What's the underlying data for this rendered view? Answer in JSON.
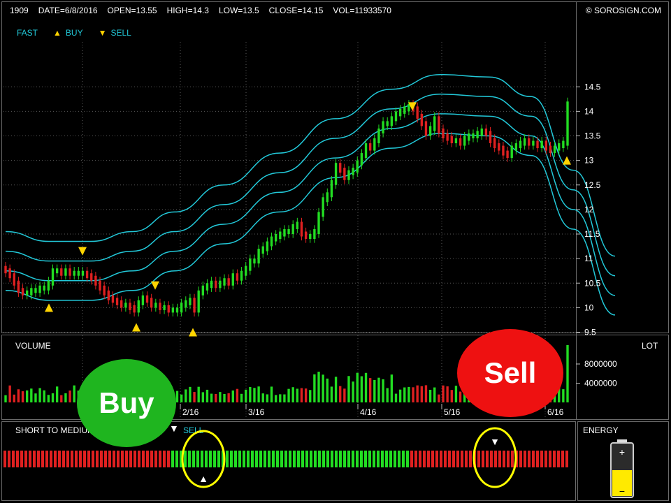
{
  "header": {
    "symbol": "1909",
    "date": "DATE=6/8/2016",
    "open": "OPEN=13.55",
    "high": "HIGH=14.3",
    "low": "LOW=13.5",
    "close": "CLOSE=14.15",
    "vol": "VOL=11933570",
    "copyright": "© SOROSIGN.COM"
  },
  "legend": {
    "fast": "FAST",
    "buy": "BUY",
    "sell": "SELL"
  },
  "colors": {
    "up": "#22dd22",
    "down": "#e02020",
    "band": "#22c8d8",
    "marker": "#ffd400",
    "buy_bubble": "#1fb51f",
    "sell_bubble": "#ee1111"
  },
  "chart_data": {
    "type": "candlestick",
    "ylim": [
      9,
      15
    ],
    "yticks": [
      "14.5",
      "14",
      "13.5",
      "13",
      "12.5",
      "12",
      "11.5",
      "11",
      "10.5",
      "10",
      "9.5"
    ],
    "xticks": [
      "2/16",
      "3/16",
      "4/16",
      "5/16",
      "6/16"
    ],
    "closes": [
      10.75,
      10.65,
      10.5,
      10.35,
      10.3,
      10.3,
      10.35,
      10.35,
      10.4,
      10.4,
      10.5,
      10.75,
      10.75,
      10.7,
      10.75,
      10.7,
      10.7,
      10.7,
      10.7,
      10.65,
      10.6,
      10.5,
      10.4,
      10.3,
      10.2,
      10.15,
      10.1,
      10.05,
      10.05,
      10,
      9.95,
      10.1,
      10.2,
      10.15,
      10.05,
      10.05,
      10,
      10,
      9.95,
      9.95,
      9.95,
      10.05,
      10.1,
      10.15,
      9.95,
      10.3,
      10.4,
      10.45,
      10.5,
      10.45,
      10.5,
      10.55,
      10.5,
      10.65,
      10.6,
      10.7,
      10.8,
      10.95,
      10.95,
      11.15,
      11.2,
      11.3,
      11.4,
      11.45,
      11.5,
      11.55,
      11.55,
      11.65,
      11.7,
      11.5,
      11.45,
      11.45,
      11.55,
      11.9,
      12.2,
      12.3,
      12.55,
      12.9,
      12.8,
      12.65,
      12.75,
      12.8,
      12.95,
      13.1,
      13.3,
      13.25,
      13.4,
      13.6,
      13.75,
      13.75,
      13.85,
      13.95,
      14,
      14.05,
      14.1,
      14.05,
      13.9,
      13.75,
      13.55,
      13.65,
      13.85,
      13.6,
      13.5,
      13.45,
      13.4,
      13.4,
      13.35,
      13.45,
      13.5,
      13.5,
      13.55,
      13.6,
      13.55,
      13.4,
      13.3,
      13.25,
      13.15,
      13.1,
      13.25,
      13.3,
      13.35,
      13.4,
      13.35,
      13.35,
      13.3,
      13.35,
      13.25,
      13.2,
      13.25,
      13.3,
      13.35,
      14.15
    ],
    "band_upper": [
      11.55,
      11.35,
      11.35,
      11.55,
      11.95,
      12.5,
      13.15,
      13.85,
      14.45,
      14.75,
      14.7,
      14.3,
      12.8,
      11.05
    ],
    "band_mid_upper": [
      11.15,
      10.95,
      10.95,
      11.15,
      11.55,
      12.1,
      12.75,
      13.45,
      14.05,
      14.35,
      14.3,
      13.9,
      12.4,
      10.65
    ],
    "band_mid_lower": [
      10.75,
      10.55,
      10.55,
      10.75,
      11.15,
      11.7,
      12.35,
      13.05,
      13.65,
      13.95,
      13.9,
      13.5,
      12.0,
      10.25
    ],
    "band_lower": [
      10.35,
      10.15,
      10.15,
      10.35,
      10.75,
      11.3,
      11.95,
      12.65,
      13.25,
      13.55,
      13.5,
      13.1,
      11.6,
      9.85
    ],
    "buy_signals": [
      10.0,
      9.6,
      9.5,
      13.0
    ],
    "sell_signals": [
      11.15,
      10.45,
      14.1
    ],
    "volume_panel": {
      "title": "VOLUME",
      "unit": "LOT",
      "yticks": [
        "8000000",
        "4000000"
      ],
      "ylim": [
        0,
        12500000
      ],
      "last_volume": 11933570
    },
    "indicator_panel": {
      "title": "SHORT TO MEDIUM",
      "sell_label": "SELL",
      "green_from": 96,
      "green_to": 232
    },
    "energy_panel": {
      "title": "ENERGY",
      "level": 0.5
    }
  },
  "annotations": {
    "buy": "Buy",
    "sell": "Sell"
  }
}
